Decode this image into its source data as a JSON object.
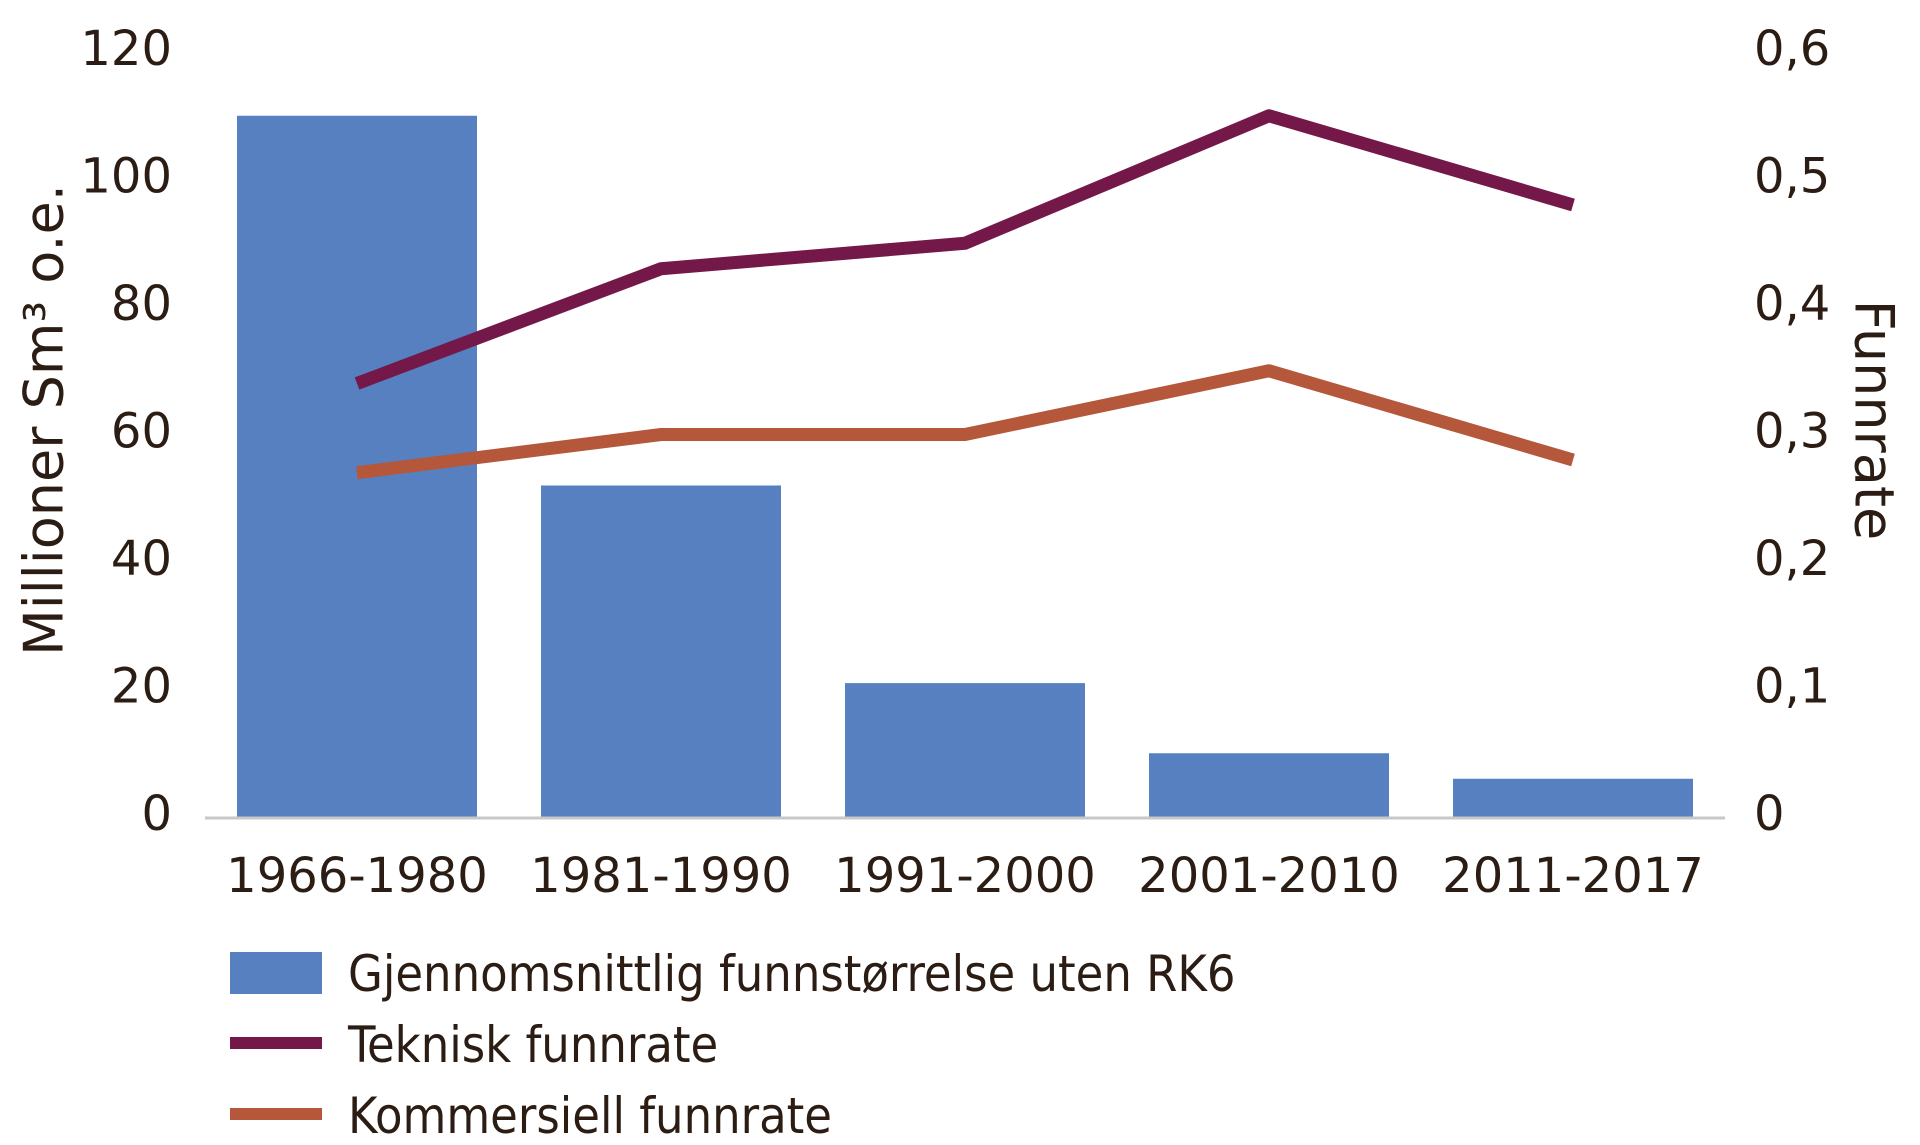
{
  "chart_data": {
    "type": "bar+line",
    "categories": [
      "1966-1980",
      "1981-1990",
      "1991-2000",
      "2001-2010",
      "2011-2017"
    ],
    "bar_series": {
      "name": "Gjennomsnittlig funnstørrelse uten RK6",
      "axis": "left",
      "values": [
        110,
        52,
        21,
        10,
        6
      ],
      "color": "#5680c0"
    },
    "line_series": [
      {
        "name": "Teknisk funnrate",
        "axis": "right",
        "values": [
          0.34,
          0.43,
          0.45,
          0.55,
          0.48
        ],
        "color": "#74184a"
      },
      {
        "name": "Kommersiell funnrate",
        "axis": "right",
        "values": [
          0.27,
          0.3,
          0.3,
          0.35,
          0.28
        ],
        "color": "#b5573a"
      }
    ],
    "ylabel_left": "Millioner Sm³ o.e.",
    "ylabel_right": "Funnrate",
    "ylim_left": [
      0,
      120
    ],
    "ylim_right": [
      0,
      0.6
    ],
    "left_ticks": [
      "0",
      "20",
      "40",
      "60",
      "80",
      "100",
      "120"
    ],
    "right_ticks": [
      "0",
      "0,1",
      "0,2",
      "0,3",
      "0,4",
      "0,5",
      "0,6"
    ],
    "grid": false,
    "legend_position": "bottom-left"
  }
}
